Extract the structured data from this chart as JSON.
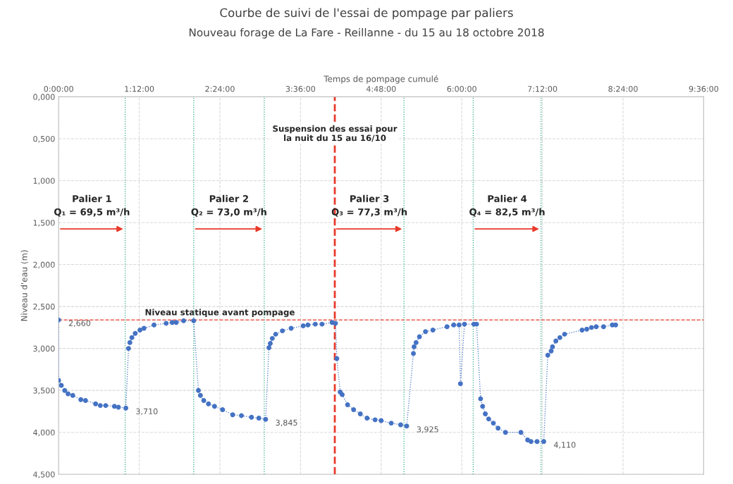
{
  "chart_data": {
    "type": "line",
    "title": "Courbe de suivi de l'essai de pompage par paliers",
    "subtitle": "Nouveau forage de La Fare - Reillanne - du 15 au 18 octobre 2018",
    "xlabel": "Temps de pompage cumulé",
    "ylabel": "Niveau d'eau (m)",
    "xlim": [
      0,
      9.6
    ],
    "ylim": [
      4.5,
      0
    ],
    "xticks": [
      {
        "value": 0,
        "label": "0:00:00"
      },
      {
        "value": 1.2,
        "label": "1:12:00"
      },
      {
        "value": 2.4,
        "label": "2:24:00"
      },
      {
        "value": 3.6,
        "label": "3:36:00"
      },
      {
        "value": 4.8,
        "label": "4:48:00"
      },
      {
        "value": 6.0,
        "label": "6:00:00"
      },
      {
        "value": 7.2,
        "label": "7:12:00"
      },
      {
        "value": 8.4,
        "label": "8:24:00"
      },
      {
        "value": 9.6,
        "label": "9:36:00"
      }
    ],
    "yticks": [
      {
        "value": 0,
        "label": "0,000"
      },
      {
        "value": 0.5,
        "label": "0,500"
      },
      {
        "value": 1.0,
        "label": "1,000"
      },
      {
        "value": 1.5,
        "label": "1,500"
      },
      {
        "value": 2.0,
        "label": "2,000"
      },
      {
        "value": 2.5,
        "label": "2,500"
      },
      {
        "value": 3.0,
        "label": "3,000"
      },
      {
        "value": 3.5,
        "label": "3,500"
      },
      {
        "value": 4.0,
        "label": "4,000"
      },
      {
        "value": 4.5,
        "label": "4,500"
      }
    ],
    "grid": true,
    "marker": "circle",
    "line_style": "dotted",
    "series": [
      {
        "color": "#4472c4",
        "x": [
          0,
          0,
          0.04,
          0.09,
          0.14,
          0.21,
          0.33,
          0.4,
          0.55,
          0.62,
          0.7,
          0.83,
          0.89,
          1.0,
          1.04,
          1.06,
          1.09,
          1.14,
          1.21,
          1.27,
          1.42,
          1.6,
          1.69,
          1.75,
          1.86,
          2.01,
          2.08,
          2.11,
          2.16,
          2.23,
          2.32,
          2.44,
          2.59,
          2.72,
          2.87,
          2.98,
          3.08,
          3.13,
          3.15,
          3.18,
          3.23,
          3.33,
          3.46,
          3.64,
          3.71,
          3.82,
          3.92,
          4.07,
          4.12,
          4.14,
          4.19,
          4.22,
          4.3,
          4.39,
          4.49,
          4.59,
          4.71,
          4.8,
          4.95,
          5.09,
          5.18,
          5.28,
          5.29,
          5.32,
          5.37,
          5.46,
          5.57,
          5.78,
          5.88,
          5.96,
          5.98,
          6.04,
          6.18,
          6.22,
          6.28,
          6.31,
          6.35,
          6.4,
          6.47,
          6.54,
          6.65,
          6.88,
          6.98,
          7.03,
          7.12,
          7.22,
          7.28,
          7.33,
          7.35,
          7.4,
          7.46,
          7.53,
          7.79,
          7.86,
          7.93,
          8.0,
          8.11,
          8.24,
          8.29
        ],
        "values": [
          2.66,
          3.38,
          3.44,
          3.5,
          3.54,
          3.56,
          3.61,
          3.62,
          3.66,
          3.68,
          3.68,
          3.69,
          3.7,
          3.71,
          3.0,
          2.93,
          2.87,
          2.82,
          2.78,
          2.76,
          2.72,
          2.7,
          2.69,
          2.69,
          2.67,
          2.67,
          3.5,
          3.56,
          3.62,
          3.66,
          3.69,
          3.73,
          3.79,
          3.8,
          3.82,
          3.83,
          3.845,
          2.99,
          2.94,
          2.88,
          2.83,
          2.79,
          2.76,
          2.73,
          2.72,
          2.71,
          2.71,
          2.69,
          2.7,
          3.12,
          3.52,
          3.55,
          3.67,
          3.73,
          3.78,
          3.83,
          3.85,
          3.86,
          3.89,
          3.91,
          3.925,
          3.06,
          2.98,
          2.93,
          2.86,
          2.8,
          2.78,
          2.74,
          2.72,
          2.72,
          3.42,
          2.71,
          2.71,
          2.71,
          3.6,
          3.69,
          3.78,
          3.84,
          3.89,
          3.95,
          4.0,
          4.0,
          4.09,
          4.11,
          4.11,
          4.11,
          3.08,
          3.03,
          2.98,
          2.91,
          2.87,
          2.83,
          2.78,
          2.77,
          2.75,
          2.74,
          2.74,
          2.72,
          2.72
        ],
        "value_labels": [
          "2,660",
          null,
          null,
          null,
          null,
          null,
          null,
          null,
          null,
          null,
          null,
          null,
          null,
          "3,710",
          null,
          null,
          null,
          null,
          null,
          null,
          null,
          null,
          null,
          null,
          null,
          null,
          null,
          null,
          null,
          null,
          null,
          null,
          null,
          null,
          null,
          null,
          "3,845",
          null,
          null,
          null,
          null,
          null,
          null,
          null,
          null,
          null,
          null,
          null,
          null,
          null,
          null,
          null,
          null,
          null,
          null,
          null,
          null,
          null,
          null,
          null,
          "3,925",
          null,
          null,
          null,
          null,
          null,
          null,
          null,
          null,
          null,
          null,
          null,
          null,
          null,
          null,
          null,
          null,
          null,
          null,
          null,
          null,
          null,
          null,
          null,
          null,
          "4,110",
          null,
          null,
          null,
          null,
          null,
          null,
          null,
          null,
          null,
          null,
          null,
          null,
          null
        ]
      }
    ],
    "ref_lines": [
      {
        "axis": "y",
        "value": 2.66,
        "label": "Niveau statique avant pompage",
        "color": "#e8392b",
        "line_style": "dashed"
      },
      {
        "axis": "x",
        "value": 4.11,
        "label": "Suspension des essai pour\nla nuit du 15 au 16/10",
        "color": "#e8392b",
        "line_style": "dashed"
      },
      {
        "axis": "x",
        "value": 0.99,
        "color": "#2eaa8a",
        "line_style": "dotted"
      },
      {
        "axis": "x",
        "value": 2.01,
        "color": "#2eaa8a",
        "line_style": "dotted"
      },
      {
        "axis": "x",
        "value": 3.06,
        "color": "#2eaa8a",
        "line_style": "dotted"
      },
      {
        "axis": "x",
        "value": 5.14,
        "color": "#2eaa8a",
        "line_style": "dotted"
      },
      {
        "axis": "x",
        "value": 6.17,
        "color": "#2eaa8a",
        "line_style": "dotted"
      },
      {
        "axis": "x",
        "value": 7.18,
        "color": "#2eaa8a",
        "line_style": "dotted"
      }
    ],
    "annotations": [
      "Palier 1\nQ₁ = 69,5 m³/h",
      "Palier 2\nQ₂ = 73,0 m³/h",
      "Palier 3\nQ₃ = 77,3 m³/h",
      "Palier 4\nQ₄ = 82,5 m³/h"
    ]
  }
}
